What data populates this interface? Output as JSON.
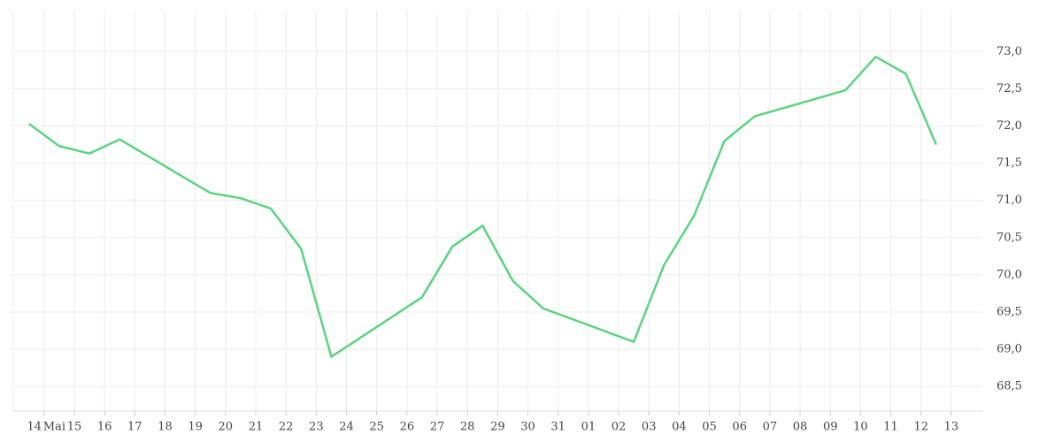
{
  "chart_data": {
    "type": "line",
    "categories": [
      "14",
      "15",
      "16",
      "17",
      "18",
      "19",
      "20",
      "21",
      "22",
      "23",
      "24",
      "25",
      "26",
      "27",
      "28",
      "29",
      "30",
      "31",
      "01",
      "02",
      "03",
      "04",
      "05",
      "06",
      "07",
      "08",
      "09",
      "10",
      "11",
      "12",
      "13"
    ],
    "month_label": "Mai",
    "series": [
      {
        "color": "#5ad47e",
        "x": [
          "14",
          "15",
          "16",
          "17",
          "20",
          "21",
          "22",
          "23",
          "24",
          "27",
          "28",
          "29",
          "30",
          "31",
          "03",
          "04",
          "05",
          "06",
          "07",
          "10",
          "11",
          "12",
          "13"
        ],
        "values": [
          72.03,
          71.73,
          71.63,
          71.82,
          71.1,
          71.03,
          70.89,
          70.35,
          68.9,
          69.7,
          70.38,
          70.66,
          69.92,
          69.55,
          69.1,
          70.13,
          70.8,
          71.8,
          72.13,
          72.48,
          72.93,
          72.7,
          71.75
        ]
      }
    ],
    "ylim": [
      68.17,
      73.55
    ],
    "yticks": [
      {
        "value": 68.5,
        "label": "68,5"
      },
      {
        "value": 69,
        "label": "69,0"
      },
      {
        "value": 69.5,
        "label": "69,5"
      },
      {
        "value": 70,
        "label": "70,0"
      },
      {
        "value": 70.5,
        "label": "70,5"
      },
      {
        "value": 71,
        "label": "71,0"
      },
      {
        "value": 71.5,
        "label": "71,5"
      },
      {
        "value": 72,
        "label": "72,0"
      },
      {
        "value": 72.5,
        "label": "72,5"
      },
      {
        "value": 73,
        "label": "73,0"
      }
    ],
    "grid": true
  }
}
